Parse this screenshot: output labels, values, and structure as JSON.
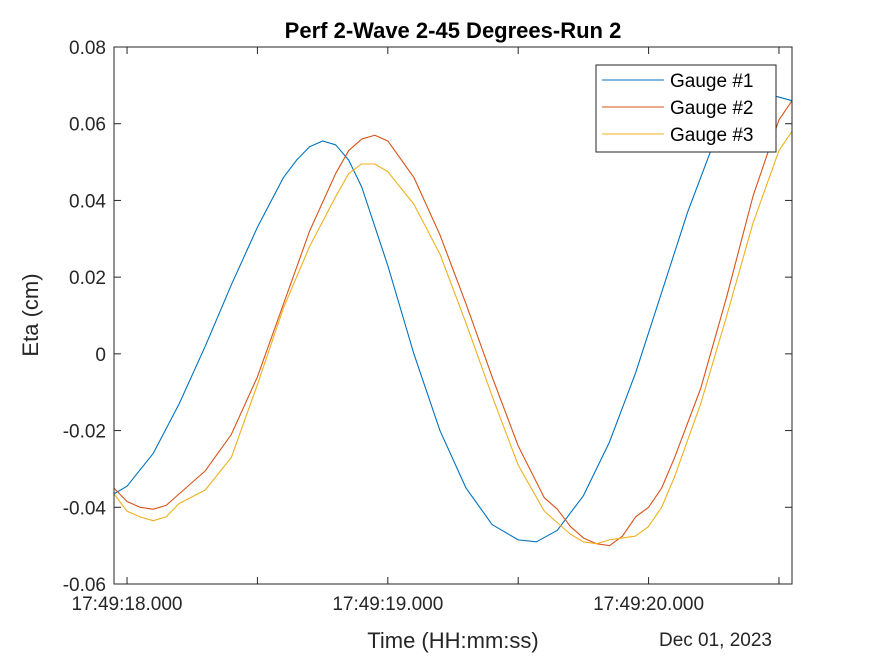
{
  "chart_data": {
    "type": "line",
    "title": "Perf 2-Wave 2-45 Degrees-Run 2",
    "xlabel": "Time (HH:mm:ss)",
    "ylabel": "Eta (cm)",
    "x_secondary_label": "Dec 01, 2023",
    "xlim": [
      17.95,
      20.55
    ],
    "ylim": [
      -0.06,
      0.08
    ],
    "x_ticks": [
      {
        "value": 18.0,
        "label": "17:49:18.000"
      },
      {
        "value": 18.5,
        "label": ""
      },
      {
        "value": 19.0,
        "label": "17:49:19.000"
      },
      {
        "value": 19.5,
        "label": ""
      },
      {
        "value": 20.0,
        "label": "17:49:20.000"
      },
      {
        "value": 20.5,
        "label": ""
      }
    ],
    "y_ticks": [
      {
        "value": -0.06,
        "label": "-0.06"
      },
      {
        "value": -0.04,
        "label": "-0.04"
      },
      {
        "value": -0.02,
        "label": "-0.02"
      },
      {
        "value": 0,
        "label": "0"
      },
      {
        "value": 0.02,
        "label": "0.02"
      },
      {
        "value": 0.04,
        "label": "0.04"
      },
      {
        "value": 0.06,
        "label": "0.06"
      },
      {
        "value": 0.08,
        "label": "0.08"
      }
    ],
    "grid": false,
    "legend_position": "top-right",
    "series": [
      {
        "name": "Gauge #1",
        "color": "#0072BD",
        "points": [
          [
            17.95,
            -0.0365
          ],
          [
            18.0,
            -0.0345
          ],
          [
            18.1,
            -0.026
          ],
          [
            18.2,
            -0.013
          ],
          [
            18.3,
            0.002
          ],
          [
            18.4,
            0.018
          ],
          [
            18.5,
            0.033
          ],
          [
            18.6,
            0.046
          ],
          [
            18.65,
            0.0505
          ],
          [
            18.7,
            0.054
          ],
          [
            18.75,
            0.0555
          ],
          [
            18.8,
            0.0545
          ],
          [
            18.85,
            0.0505
          ],
          [
            18.9,
            0.0435
          ],
          [
            19.0,
            0.023
          ],
          [
            19.1,
            0.0
          ],
          [
            19.2,
            -0.02
          ],
          [
            19.3,
            -0.035
          ],
          [
            19.4,
            -0.0445
          ],
          [
            19.5,
            -0.0485
          ],
          [
            19.57,
            -0.049
          ],
          [
            19.65,
            -0.046
          ],
          [
            19.75,
            -0.037
          ],
          [
            19.85,
            -0.023
          ],
          [
            19.95,
            -0.005
          ],
          [
            20.05,
            0.016
          ],
          [
            20.15,
            0.037
          ],
          [
            20.25,
            0.055
          ],
          [
            20.32,
            0.064
          ],
          [
            20.4,
            0.068
          ],
          [
            20.47,
            0.0675
          ],
          [
            20.55,
            0.066
          ]
        ]
      },
      {
        "name": "Gauge #2",
        "color": "#D95319",
        "points": [
          [
            17.95,
            -0.035
          ],
          [
            18.0,
            -0.0385
          ],
          [
            18.05,
            -0.04
          ],
          [
            18.1,
            -0.0405
          ],
          [
            18.15,
            -0.0395
          ],
          [
            18.2,
            -0.0365
          ],
          [
            18.3,
            -0.0305
          ],
          [
            18.4,
            -0.021
          ],
          [
            18.5,
            -0.006
          ],
          [
            18.6,
            0.013
          ],
          [
            18.7,
            0.032
          ],
          [
            18.8,
            0.047
          ],
          [
            18.85,
            0.053
          ],
          [
            18.9,
            0.056
          ],
          [
            18.95,
            0.057
          ],
          [
            19.0,
            0.0555
          ],
          [
            19.1,
            0.046
          ],
          [
            19.2,
            0.031
          ],
          [
            19.3,
            0.013
          ],
          [
            19.4,
            -0.006
          ],
          [
            19.5,
            -0.024
          ],
          [
            19.6,
            -0.0375
          ],
          [
            19.65,
            -0.0405
          ],
          [
            19.7,
            -0.045
          ],
          [
            19.75,
            -0.048
          ],
          [
            19.8,
            -0.0495
          ],
          [
            19.85,
            -0.05
          ],
          [
            19.9,
            -0.0475
          ],
          [
            19.95,
            -0.0425
          ],
          [
            20.0,
            -0.04
          ],
          [
            20.05,
            -0.035
          ],
          [
            20.1,
            -0.027
          ],
          [
            20.2,
            -0.009
          ],
          [
            20.3,
            0.015
          ],
          [
            20.4,
            0.041
          ],
          [
            20.5,
            0.061
          ],
          [
            20.55,
            0.066
          ]
        ]
      },
      {
        "name": "Gauge #3",
        "color": "#EDB120",
        "points": [
          [
            17.95,
            -0.0365
          ],
          [
            18.0,
            -0.041
          ],
          [
            18.05,
            -0.0425
          ],
          [
            18.1,
            -0.0435
          ],
          [
            18.15,
            -0.0425
          ],
          [
            18.2,
            -0.039
          ],
          [
            18.3,
            -0.0355
          ],
          [
            18.4,
            -0.027
          ],
          [
            18.5,
            -0.008
          ],
          [
            18.6,
            0.012
          ],
          [
            18.7,
            0.028
          ],
          [
            18.8,
            0.041
          ],
          [
            18.85,
            0.047
          ],
          [
            18.9,
            0.0495
          ],
          [
            18.95,
            0.0495
          ],
          [
            19.0,
            0.0475
          ],
          [
            19.1,
            0.039
          ],
          [
            19.2,
            0.026
          ],
          [
            19.3,
            0.008
          ],
          [
            19.4,
            -0.011
          ],
          [
            19.5,
            -0.029
          ],
          [
            19.6,
            -0.041
          ],
          [
            19.7,
            -0.047
          ],
          [
            19.75,
            -0.049
          ],
          [
            19.8,
            -0.0495
          ],
          [
            19.85,
            -0.0485
          ],
          [
            19.9,
            -0.048
          ],
          [
            19.95,
            -0.0475
          ],
          [
            20.0,
            -0.045
          ],
          [
            20.05,
            -0.04
          ],
          [
            20.1,
            -0.032
          ],
          [
            20.2,
            -0.013
          ],
          [
            20.3,
            0.01
          ],
          [
            20.4,
            0.034
          ],
          [
            20.5,
            0.053
          ],
          [
            20.55,
            0.058
          ]
        ]
      }
    ]
  }
}
